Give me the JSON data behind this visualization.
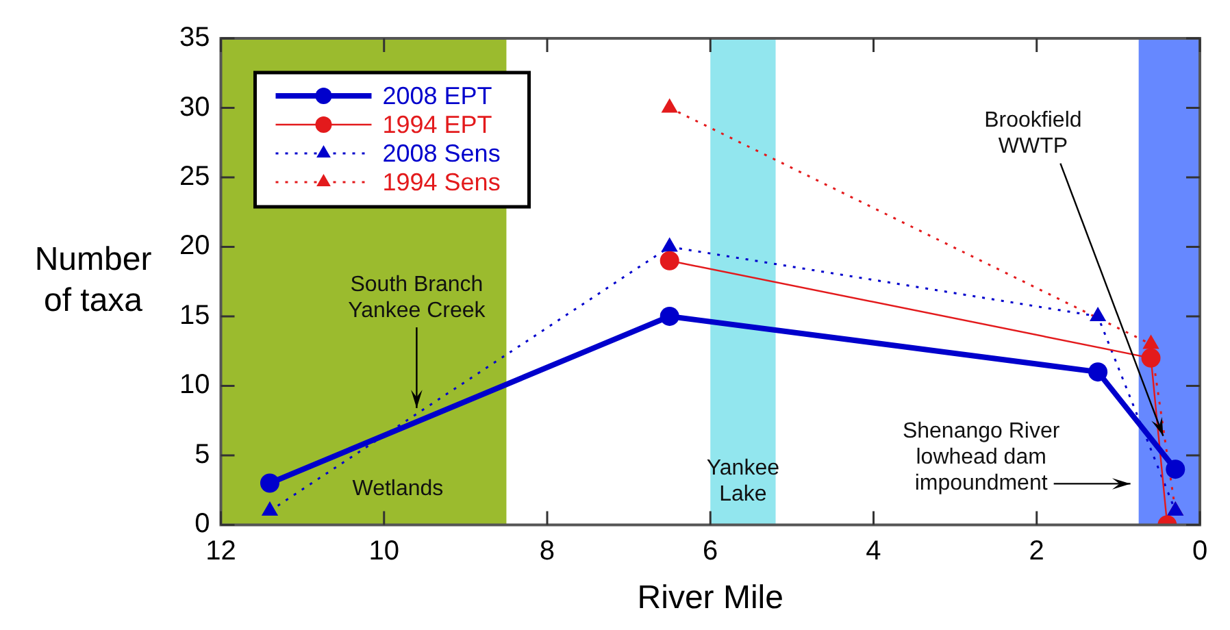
{
  "chart_data": {
    "type": "line",
    "xlabel": "River Mile",
    "ylabel": "Number of taxa",
    "xlim": [
      12,
      0
    ],
    "xticks": [
      12,
      10,
      8,
      6,
      4,
      2,
      0
    ],
    "ylim": [
      0,
      35
    ],
    "yticks": [
      0,
      5,
      10,
      15,
      20,
      25,
      30,
      35
    ],
    "grid": false,
    "legend": "top left",
    "series": [
      {
        "name": "2008 EPT",
        "color": "#0000cc",
        "x": [
          11.4,
          6.5,
          1.25,
          0.3
        ],
        "values": [
          3,
          15,
          11,
          4
        ],
        "marker": "circle",
        "line_style": "solid"
      },
      {
        "name": "1994 EPT",
        "color": "#e31a1c",
        "x": [
          6.5,
          0.6,
          0.4
        ],
        "values": [
          19,
          12,
          0
        ],
        "marker": "circle",
        "line_style": "solid"
      },
      {
        "name": "2008 Sens",
        "color": "#0000cc",
        "x": [
          11.4,
          6.5,
          1.25,
          0.3
        ],
        "values": [
          1,
          20,
          15,
          1
        ],
        "marker": "triangle",
        "line_style": "dotted"
      },
      {
        "name": "1994 Sens",
        "color": "#e31a1c",
        "x": [
          6.5,
          0.6,
          0.3
        ],
        "values": [
          30,
          13,
          1
        ],
        "marker": "triangle",
        "line_style": "dotted"
      }
    ],
    "bands": [
      {
        "axis": "x",
        "from": 12,
        "to": 8.5,
        "label": "Wetlands",
        "color": "#9bbb2e"
      },
      {
        "axis": "x",
        "from": 6,
        "to": 5.2,
        "label": "Yankee\nLake",
        "color": "#92e6ee"
      },
      {
        "axis": "x",
        "from": 0.75,
        "to": 0,
        "label": "Shenango River\nlowhead dam\nimpoundment",
        "color": "#6688ff"
      }
    ],
    "annotations": [
      {
        "text": "South Branch\nYankee Creek",
        "x": 9.6,
        "y": 8
      },
      {
        "text": "Brookfield\nWWTP",
        "x": 0.45,
        "y": 6
      }
    ]
  }
}
